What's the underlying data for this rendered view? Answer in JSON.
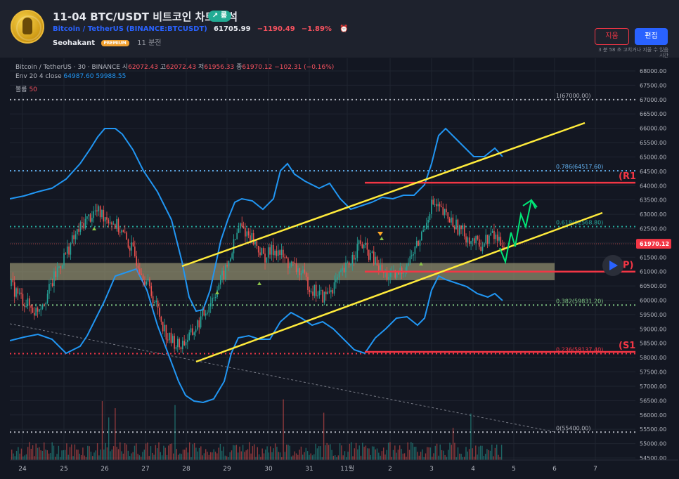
{
  "header": {
    "title": "11-04 BTC/USDT 비트코인 차트 분석",
    "badge": "↗ 롱",
    "symbol_link": "Bitcoin / TetherUS (BINANCE:BTCUSDT)",
    "price": "61705.99",
    "change": "−1190.49",
    "change_pct": "−1.89%",
    "author": "Seohakant",
    "premium_badge": "PREMIUM",
    "ago": "11 분전",
    "delete_label": "지움",
    "edit_label": "편집",
    "edit_note": "3 분 58 초 고치거나 지울 수 있음 시간"
  },
  "colors": {
    "background": "#131722",
    "accent_blue": "#2962ff",
    "red": "#f23645",
    "yellow": "#ffeb3b",
    "envelope": "#2196f3",
    "green_arrow": "#00e676"
  },
  "legend": {
    "line1": "Bitcoin / TetherUS · 30 · BINANCE",
    "o_label": "시",
    "o": "62072.43",
    "h_label": "고",
    "h": "62072.43",
    "l_label": "저",
    "l": "61956.33",
    "c_label": "종",
    "c": "61970.12",
    "chg": "−102.31 (−0.16%)",
    "env": "Env 20 4 close",
    "env_upper": "64987.60",
    "env_lower": "59988.55",
    "vol_label": "볼륨",
    "vol": "50"
  },
  "chart_data": {
    "type": "candlestick",
    "y_axis": {
      "range": [
        54500,
        68000
      ],
      "ticks": [
        "68000.00",
        "67500.00",
        "67000.00",
        "66500.00",
        "66000.00",
        "65500.00",
        "65000.00",
        "64500.00",
        "64000.00",
        "63500.00",
        "63000.00",
        "62500.00",
        "62000.00",
        "61500.00",
        "61000.00",
        "60500.00",
        "60000.00",
        "59500.00",
        "59000.00",
        "58500.00",
        "58000.00",
        "57500.00",
        "57000.00",
        "56500.00",
        "56000.00",
        "55500.00",
        "55000.00",
        "54500.00"
      ]
    },
    "x_axis": {
      "ticks": [
        "24",
        "25",
        "26",
        "27",
        "28",
        "29",
        "30",
        "31",
        "11월",
        "2",
        "3",
        "4",
        "5",
        "6",
        "7"
      ]
    },
    "last_price_label": "61970.12",
    "fib_levels": [
      {
        "label": "1(67000.00)",
        "value": 67000,
        "color": "#b2b5be"
      },
      {
        "label": "0.786(64517.60)",
        "value": 64517.6,
        "color": "#64b5f6"
      },
      {
        "label": "0.618(62568.80)",
        "value": 62568.8,
        "color": "#26a69a"
      },
      {
        "label": "0.382(59831.20)",
        "value": 59831.2,
        "color": "#81c784"
      },
      {
        "label": "0.236(58137.40)",
        "value": 58137.4,
        "color": "#f23645"
      },
      {
        "label": "0(55400.00)",
        "value": 55400,
        "color": "#b2b5be"
      }
    ],
    "levels": [
      {
        "label": "(R1)",
        "value": 64100
      },
      {
        "label": "(P)",
        "value": 61000
      },
      {
        "label": "(S1)",
        "value": 58200
      }
    ],
    "support_zone": [
      60700,
      61300
    ],
    "channel_upper": [
      {
        "x": "27 12:00",
        "y": 61300
      },
      {
        "x": "4 15:00",
        "y": 66100
      }
    ],
    "channel_lower": [
      {
        "x": "28 09:00",
        "y": 57950
      },
      {
        "x": "4 15:00",
        "y": 63050
      }
    ],
    "close_path": [
      60500,
      60000,
      59600,
      60200,
      61200,
      62000,
      62700,
      63100,
      62900,
      62500,
      61800,
      60900,
      59900,
      58700,
      58400,
      58800,
      59500,
      60300,
      61200,
      62600,
      62200,
      61500,
      61800,
      61300,
      61000,
      60400,
      60100,
      60600,
      61200,
      62000,
      61500,
      60900,
      60800,
      61300,
      62100,
      63400,
      63000,
      62600,
      62200,
      61900,
      62300,
      61970
    ]
  }
}
